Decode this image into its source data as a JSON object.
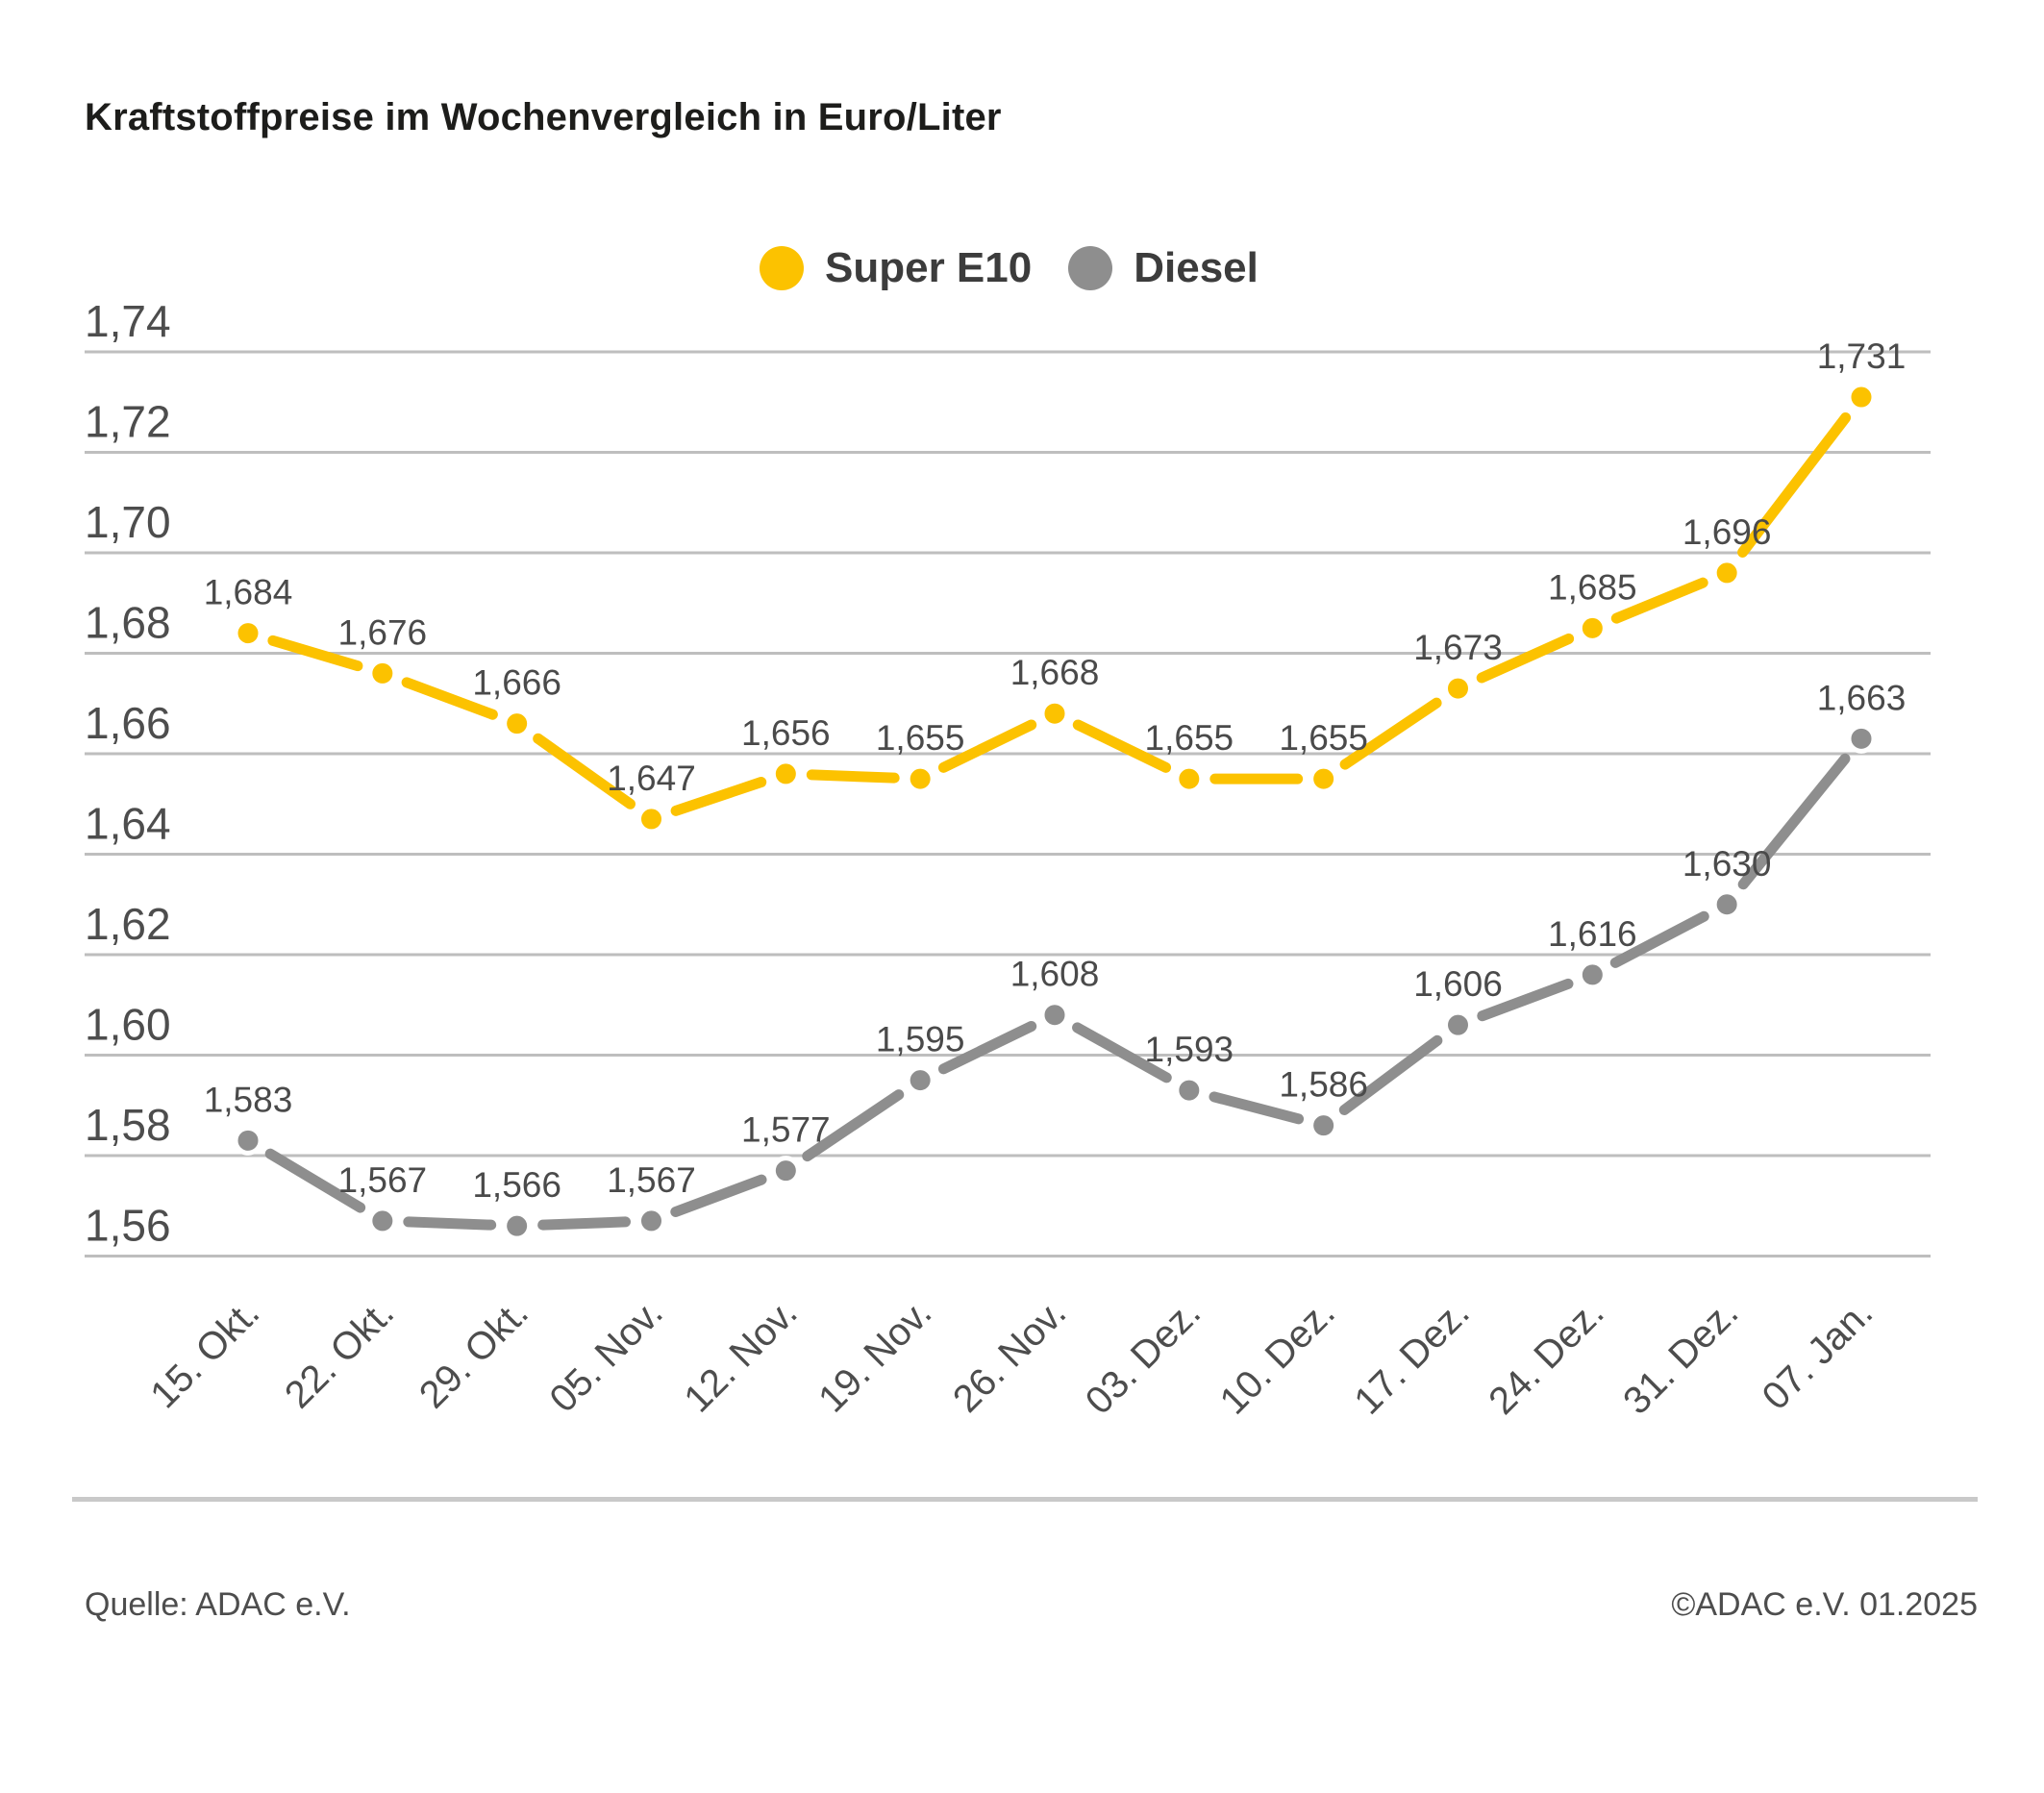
{
  "title": "Kraftstoffpreise im Wochenvergleich in Euro/Liter",
  "footer": {
    "source": "Quelle: ADAC e.V.",
    "copyright": "©ADAC e.V. 01.2025"
  },
  "chart_data": {
    "type": "line",
    "title": "Kraftstoffpreise im Wochenvergleich in Euro/Liter",
    "categories": [
      "15. Okt.",
      "22. Okt.",
      "29. Okt.",
      "05. Nov.",
      "12. Nov.",
      "19. Nov.",
      "26. Nov.",
      "03. Dez.",
      "10. Dez.",
      "17. Dez.",
      "24. Dez.",
      "31. Dez.",
      "07. Jan."
    ],
    "series": [
      {
        "name": "Super E10",
        "color": "#FCC200",
        "values": [
          1.684,
          1.676,
          1.666,
          1.647,
          1.656,
          1.655,
          1.668,
          1.655,
          1.655,
          1.673,
          1.685,
          1.696,
          1.731
        ],
        "point_labels": [
          "1,684",
          "1,676",
          "1,666",
          "1,647",
          "1,656",
          "1,655",
          "1,668",
          "1,655",
          "1,655",
          "1,673",
          "1,685",
          "1,696",
          "1,731"
        ]
      },
      {
        "name": "Diesel",
        "color": "#8E8E8E",
        "values": [
          1.583,
          1.567,
          1.566,
          1.567,
          1.577,
          1.595,
          1.608,
          1.593,
          1.586,
          1.606,
          1.616,
          1.63,
          1.663
        ],
        "point_labels": [
          "1,583",
          "1,567",
          "1,566",
          "1,567",
          "1,577",
          "1,595",
          "1,608",
          "1,593",
          "1,586",
          "1,606",
          "1,616",
          "1,630",
          "1,663"
        ]
      }
    ],
    "yticks": [
      1.74,
      1.72,
      1.7,
      1.68,
      1.66,
      1.64,
      1.62,
      1.6,
      1.58,
      1.56
    ],
    "ytick_labels": [
      "1,74",
      "1,72",
      "1,70",
      "1,68",
      "1,66",
      "1,64",
      "1,62",
      "1,60",
      "1,58",
      "1,56"
    ],
    "ylim": [
      1.553,
      1.745
    ],
    "ylabel": "",
    "xlabel": "",
    "grid": "horizontal",
    "legend_position": "top-center",
    "decimal_separator": "comma"
  }
}
